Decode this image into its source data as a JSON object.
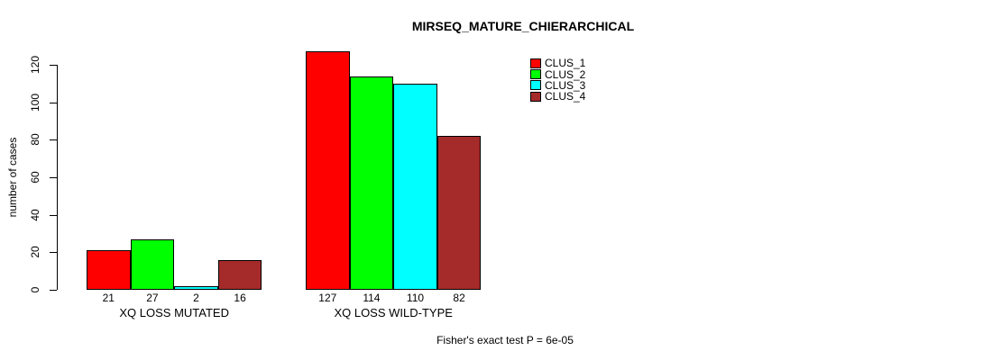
{
  "chart_data": {
    "type": "bar",
    "title": "MIRSEQ_MATURE_CHIERARCHICAL",
    "ylabel": "number of cases",
    "xlabel": "",
    "categories": [
      "XQ LOSS MUTATED",
      "XQ LOSS WILD-TYPE"
    ],
    "series": [
      {
        "name": "CLUS_1",
        "color": "#FF0000",
        "values": [
          21,
          127
        ]
      },
      {
        "name": "CLUS_2",
        "color": "#00FF00",
        "values": [
          27,
          114
        ]
      },
      {
        "name": "CLUS_3",
        "color": "#00FFFF",
        "values": [
          2,
          110
        ]
      },
      {
        "name": "CLUS_4",
        "color": "#A52A2A",
        "values": [
          16,
          82
        ]
      }
    ],
    "bar_value_labels": [
      [
        "21",
        "27",
        "2",
        "16"
      ],
      [
        "127",
        "114",
        "110",
        "82"
      ]
    ],
    "yticks": [
      0,
      20,
      40,
      60,
      80,
      100,
      120
    ],
    "ylim": [
      0,
      120
    ],
    "grid": false,
    "legend_position": "top-right",
    "footnote": "Fisher's exact test P = 6e-05"
  }
}
